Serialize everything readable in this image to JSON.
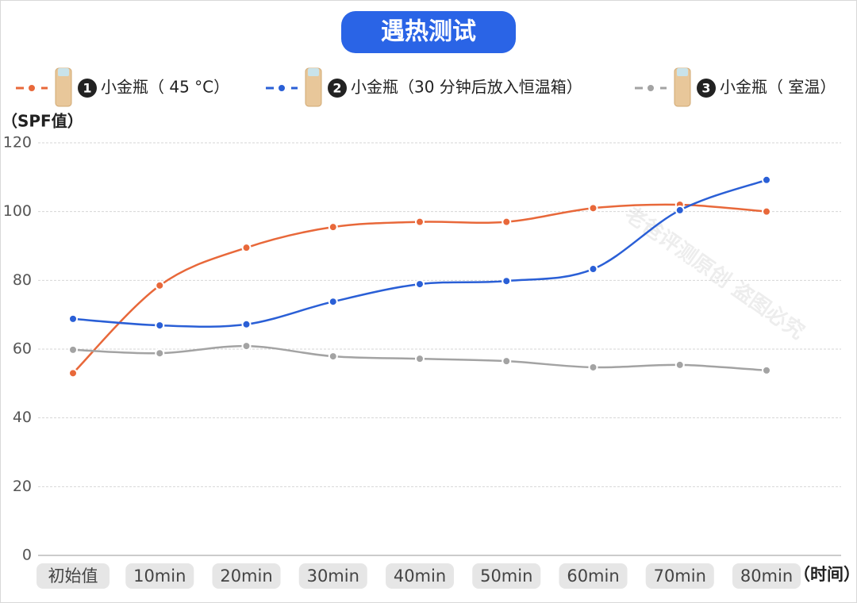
{
  "chart_data": {
    "type": "line",
    "title": "遇热测试",
    "y_label": "（SPF值）",
    "x_label": "（时间）",
    "annotation": "老爸评测原创 盗图必究",
    "legend_badges": [
      "1",
      "2",
      "3"
    ],
    "categories": [
      "初始值",
      "10min",
      "20min",
      "30min",
      "40min",
      "50min",
      "60min",
      "70min",
      "80min"
    ],
    "series": [
      {
        "name": "小金瓶（ 45 °C）",
        "color": "#e8683a",
        "values": [
          53,
          78.5,
          89.5,
          95.5,
          97,
          97,
          101,
          102,
          100
        ]
      },
      {
        "name": "小金瓶（30 分钟后放入恒温箱）",
        "color": "#2a5fd6",
        "values": [
          68.8,
          66.9,
          67.2,
          73.8,
          78.9,
          79.8,
          83.3,
          100.4,
          109.2
        ]
      },
      {
        "name": "小金瓶（ 室温）",
        "color": "#a3a3a3",
        "values": [
          59.8,
          58.8,
          60.9,
          57.9,
          57.2,
          56.5,
          54.7,
          55.4,
          53.8
        ]
      }
    ],
    "ylim": [
      0,
      120
    ],
    "yticks": [
      0,
      20,
      40,
      60,
      80,
      100,
      120
    ],
    "grid": true
  }
}
